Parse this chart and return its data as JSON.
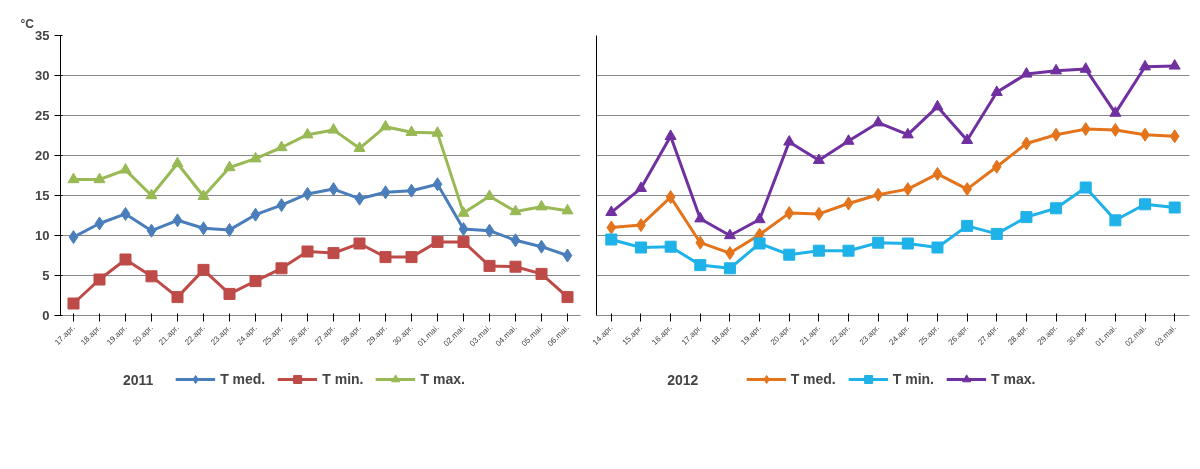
{
  "chart_data": [
    {
      "type": "line",
      "ylabel": "°C",
      "legend_title": "2011",
      "legend": "bottom",
      "grid": "y",
      "tick_labels": "xy",
      "categories": [
        "17.apr.",
        "18.apr.",
        "19.apr.",
        "20.apr.",
        "21.apr.",
        "22.apr.",
        "23.apr.",
        "24.apr.",
        "25.apr.",
        "26.apr.",
        "27.apr.",
        "28.apr.",
        "29.apr.",
        "30.apr.",
        "01.mai.",
        "02.mai.",
        "03.mai.",
        "04.mai.",
        "05.mai.",
        "06.mai."
      ],
      "ylim": [
        0,
        35
      ],
      "yticks": [
        0,
        5,
        10,
        15,
        20,
        25,
        30,
        35
      ],
      "series": [
        {
          "name": "T med.",
          "color": "#4a7ebb",
          "marker": "diamond",
          "values": [
            9.8,
            11.5,
            12.7,
            10.6,
            11.9,
            10.9,
            10.7,
            12.6,
            13.8,
            15.2,
            15.8,
            14.6,
            15.4,
            15.6,
            16.4,
            10.8,
            10.6,
            9.4,
            8.6,
            7.5
          ]
        },
        {
          "name": "T min.",
          "color": "#be4b48",
          "marker": "square",
          "values": [
            1.5,
            4.5,
            7.0,
            4.9,
            2.3,
            5.7,
            2.7,
            4.3,
            5.9,
            8.0,
            7.8,
            9.0,
            7.3,
            7.3,
            9.2,
            9.2,
            6.2,
            6.1,
            5.2,
            2.3
          ]
        },
        {
          "name": "T max.",
          "color": "#98b954",
          "marker": "triangle",
          "values": [
            17.0,
            17.0,
            18.2,
            15.0,
            19.0,
            14.9,
            18.5,
            19.6,
            21.0,
            22.6,
            23.2,
            20.9,
            23.6,
            22.9,
            22.8,
            12.8,
            14.9,
            13.0,
            13.6,
            13.1
          ]
        }
      ]
    },
    {
      "type": "line",
      "legend_title": "2012",
      "legend": "bottom",
      "grid": "y",
      "tick_labels": "x",
      "categories": [
        "14.apr.",
        "15.apr.",
        "16.apr.",
        "17.apr.",
        "18.apr.",
        "19.apr.",
        "20.apr.",
        "21.apr.",
        "22.apr.",
        "23.apr.",
        "24.apr.",
        "25.apr.",
        "26.apr.",
        "27.apr.",
        "28.apr.",
        "29.apr.",
        "30.apr.",
        "01.mai.",
        "02.mai.",
        "03.mai."
      ],
      "ylim": [
        0,
        35
      ],
      "yticks": [
        0,
        5,
        10,
        15,
        20,
        25,
        30,
        35
      ],
      "series": [
        {
          "name": "T med.",
          "color": "#e3741b",
          "marker": "diamond",
          "values": [
            11.0,
            11.3,
            14.8,
            9.1,
            7.8,
            10.1,
            12.8,
            12.7,
            14.0,
            15.1,
            15.8,
            17.7,
            15.8,
            18.6,
            21.5,
            22.6,
            23.3,
            23.2,
            22.6,
            22.4
          ]
        },
        {
          "name": "T min.",
          "color": "#1fb2e8",
          "marker": "square",
          "values": [
            9.5,
            8.5,
            8.6,
            6.3,
            5.9,
            9.0,
            7.6,
            8.1,
            8.1,
            9.1,
            9.0,
            8.5,
            11.2,
            10.2,
            12.3,
            13.4,
            16.0,
            11.9,
            13.9,
            13.5
          ]
        },
        {
          "name": "T max.",
          "color": "#7030a0",
          "marker": "triangle",
          "values": [
            12.9,
            15.9,
            22.4,
            12.1,
            10.0,
            12.0,
            21.7,
            19.4,
            21.8,
            24.1,
            22.6,
            26.1,
            21.9,
            27.9,
            30.2,
            30.6,
            30.8,
            25.3,
            31.1,
            31.2
          ]
        }
      ]
    }
  ]
}
